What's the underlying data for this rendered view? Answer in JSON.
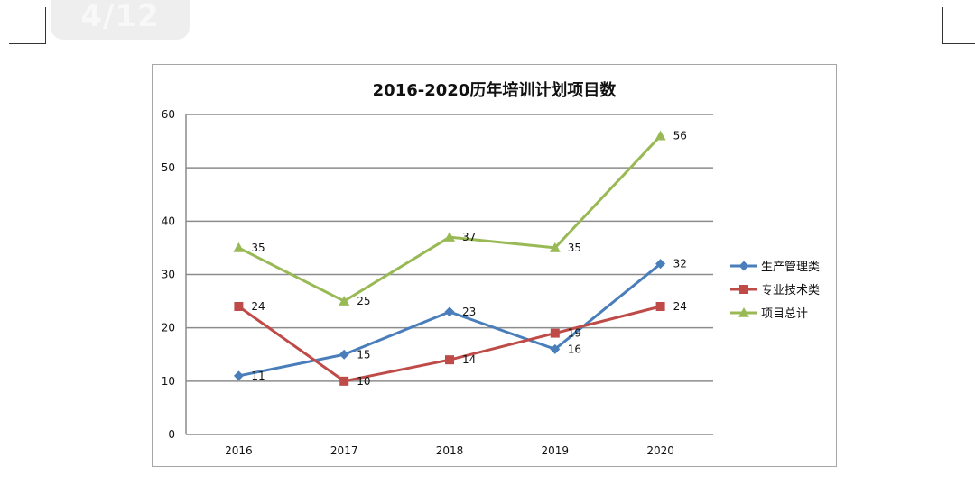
{
  "page_indicator": "4/12",
  "chart_data": {
    "type": "line",
    "title": "2016-2020历年培训计划项目数",
    "categories": [
      "2016",
      "2017",
      "2018",
      "2019",
      "2020"
    ],
    "ylim": [
      0,
      60
    ],
    "yticks": [
      0,
      10,
      20,
      30,
      40,
      50,
      60
    ],
    "grid": true,
    "legend_position": "right",
    "series": [
      {
        "name": "生产管理类",
        "values": [
          11,
          15,
          23,
          16,
          32
        ],
        "color": "#4a7ebb",
        "marker": "diamond"
      },
      {
        "name": "专业技术类",
        "values": [
          24,
          10,
          14,
          19,
          24
        ],
        "color": "#be4b48",
        "marker": "square"
      },
      {
        "name": "项目总计",
        "values": [
          35,
          25,
          37,
          35,
          56
        ],
        "color": "#98b954",
        "marker": "triangle"
      }
    ]
  }
}
